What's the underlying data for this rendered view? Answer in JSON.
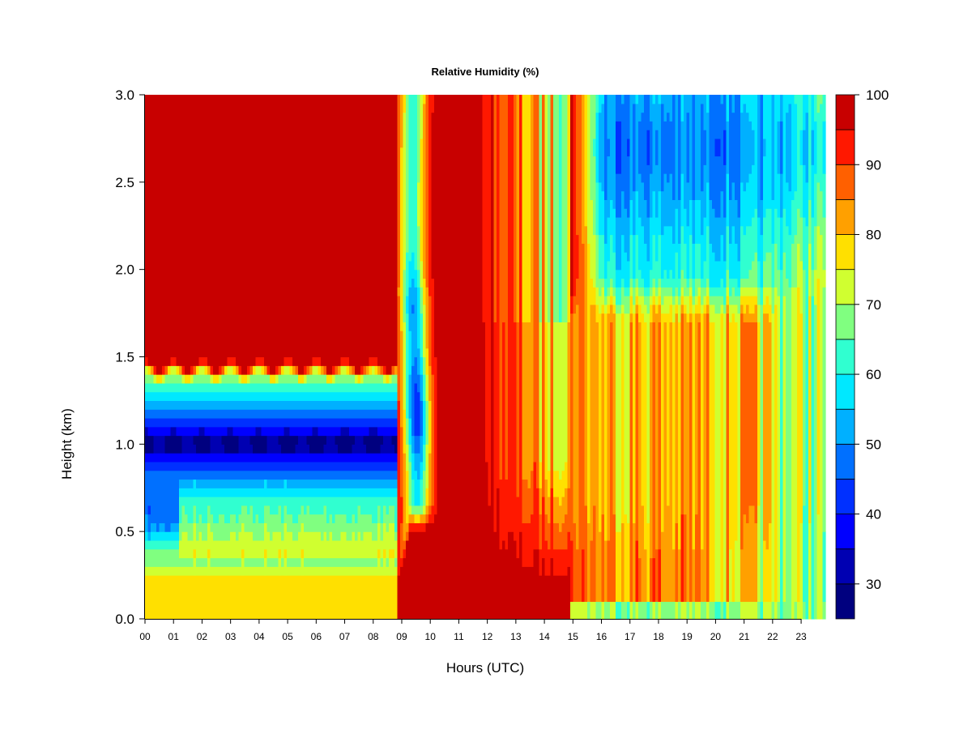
{
  "chart_data": {
    "type": "heatmap",
    "title": "Relative Humidity (%)",
    "xlabel": "Hours (UTC)",
    "ylabel": "Height (km)",
    "x_ticks": [
      "00",
      "01",
      "02",
      "03",
      "04",
      "05",
      "06",
      "07",
      "08",
      "09",
      "10",
      "11",
      "12",
      "13",
      "14",
      "15",
      "16",
      "17",
      "18",
      "19",
      "20",
      "21",
      "22",
      "23"
    ],
    "x_tick_values": [
      0,
      1,
      2,
      3,
      4,
      5,
      6,
      7,
      8,
      9,
      10,
      11,
      12,
      13,
      14,
      15,
      16,
      17,
      18,
      19,
      20,
      21,
      22,
      23
    ],
    "xlim": [
      0,
      23.85
    ],
    "y_ticks": [
      "0.0",
      "0.5",
      "1.0",
      "1.5",
      "2.0",
      "2.5",
      "3.0"
    ],
    "y_tick_values": [
      0.0,
      0.5,
      1.0,
      1.5,
      2.0,
      2.5,
      3.0
    ],
    "ylim": [
      0.0,
      3.0
    ],
    "colorbar": {
      "label_values": [
        30,
        40,
        50,
        60,
        70,
        80,
        90,
        100
      ],
      "labels": [
        "30",
        "40",
        "50",
        "60",
        "70",
        "80",
        "90",
        "100"
      ],
      "levels": [
        25,
        30,
        35,
        40,
        45,
        50,
        55,
        60,
        65,
        70,
        75,
        80,
        85,
        90,
        95,
        100
      ],
      "colors": [
        "#00007f",
        "#0000b2",
        "#0000ff",
        "#0030ff",
        "#0070ff",
        "#00b0ff",
        "#00e8ff",
        "#30ffd0",
        "#80ff80",
        "#d0ff30",
        "#ffe000",
        "#ffa000",
        "#ff6000",
        "#ff1800",
        "#c80000",
        "#800000"
      ]
    },
    "legend_position": "right",
    "grid": false
  }
}
